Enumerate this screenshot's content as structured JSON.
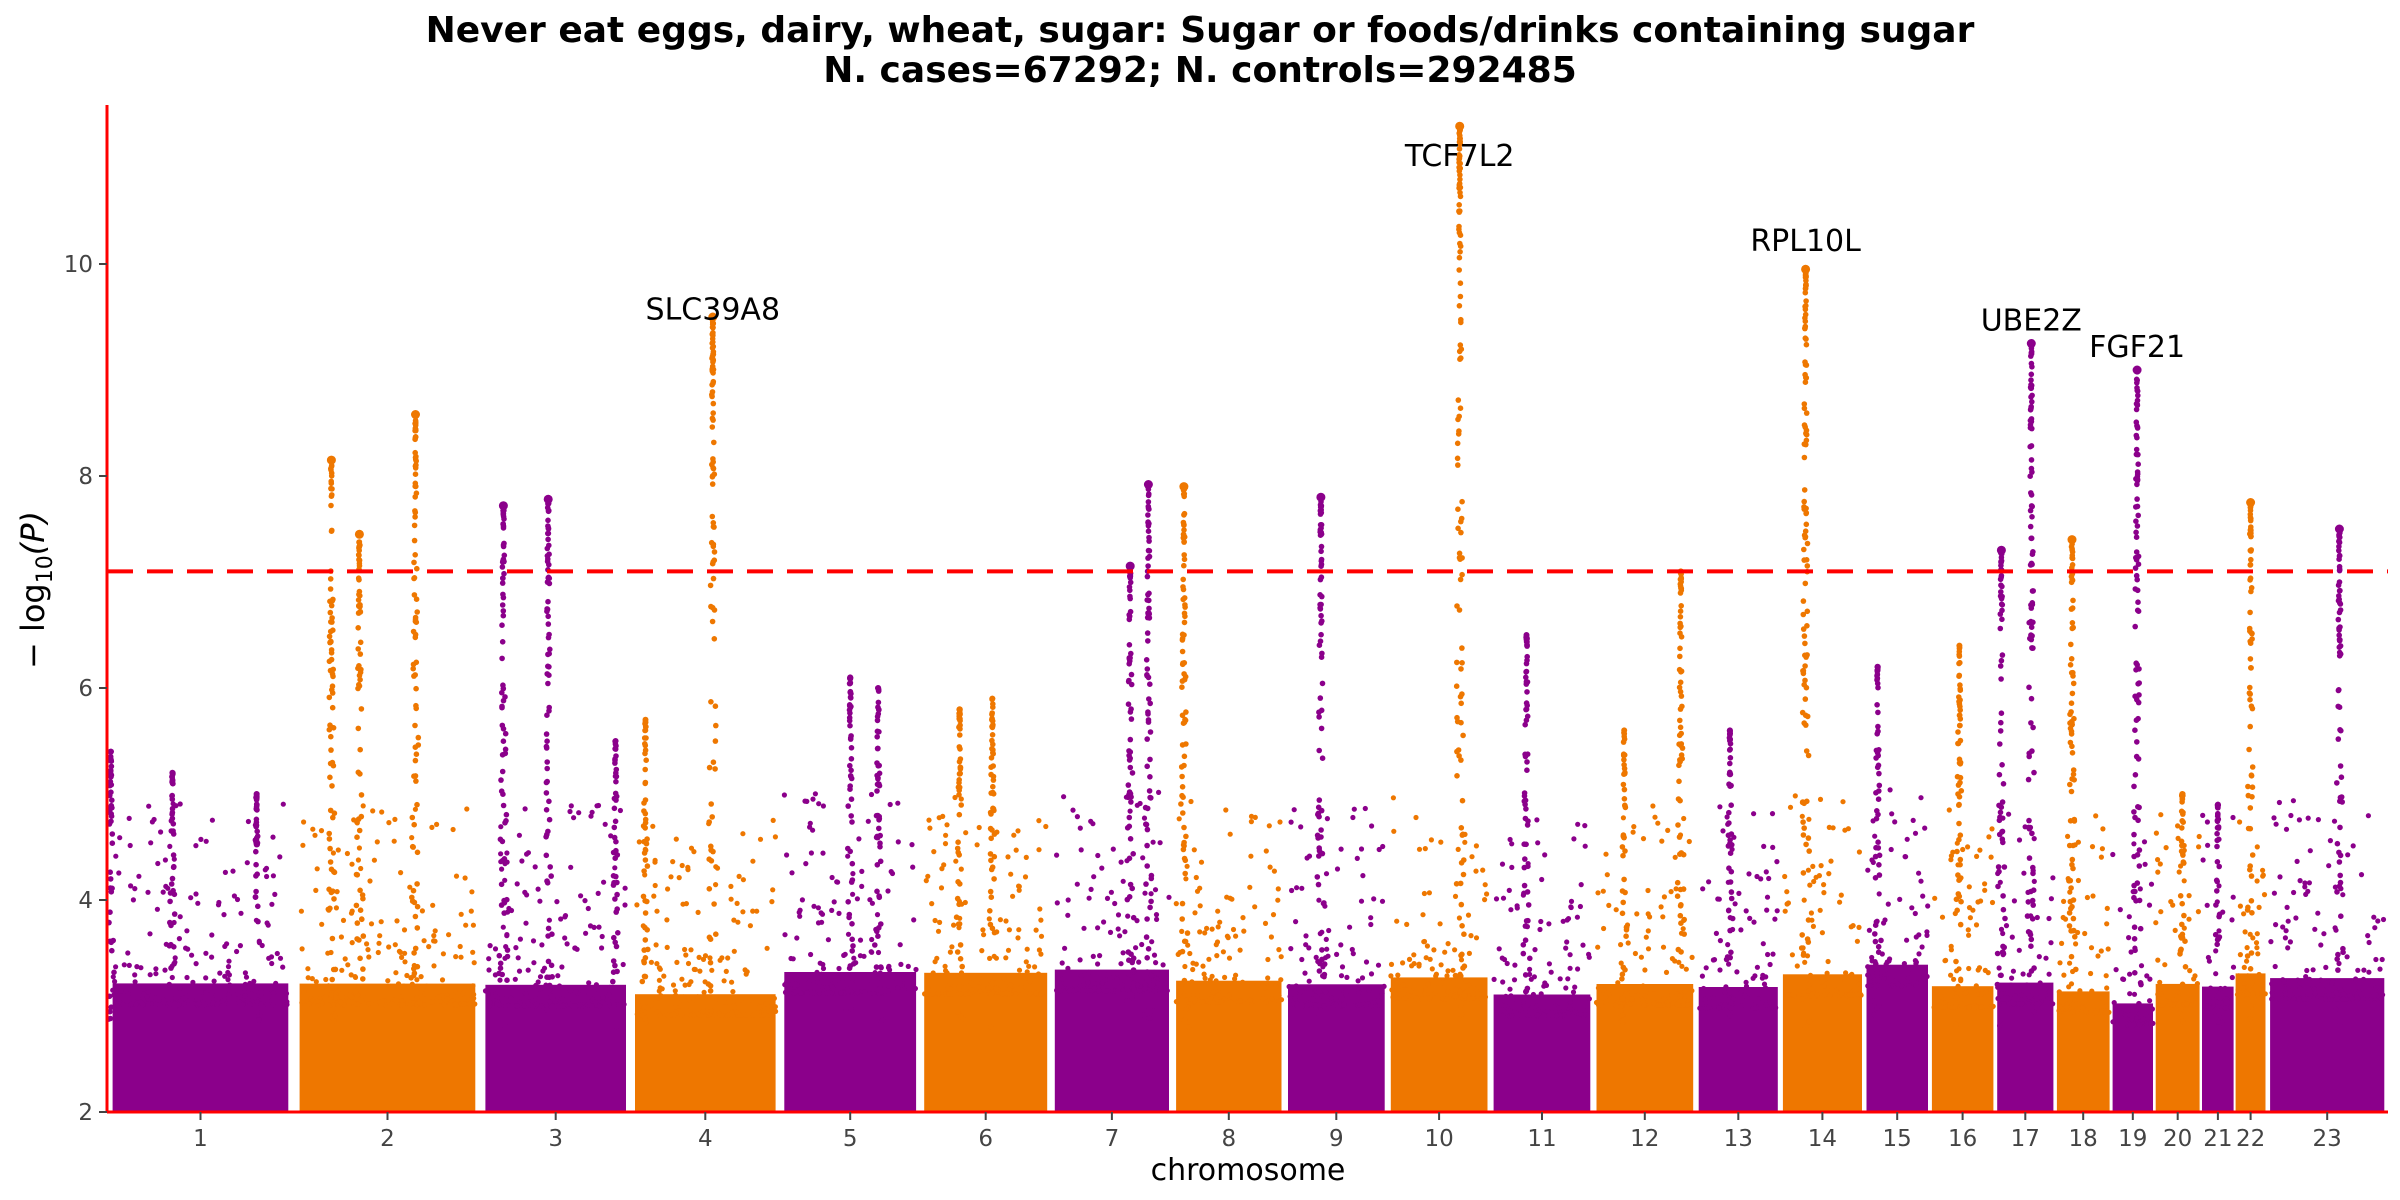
{
  "chart_data": {
    "type": "scatter",
    "title": "Never eat eggs, dairy, wheat, sugar: Sugar or foods/drinks containing sugar",
    "subtitle": "N. cases=67292; N. controls=292485",
    "xlabel": "chromosome",
    "ylabel_main": "− log",
    "ylabel_sub": "10",
    "ylabel_tail": "(P)",
    "ylim": [
      2,
      11.5
    ],
    "yticks": [
      2,
      4,
      6,
      8,
      10
    ],
    "threshold": 7.1,
    "colors": {
      "odd": "#8B008B",
      "even": "#EE7700",
      "threshold": "#FF0000",
      "axis": "#FF0000"
    },
    "chromosomes": [
      {
        "label": "1",
        "start": 0.0,
        "end": 1.0,
        "peaks": [
          [
            0.02,
            5.4
          ],
          [
            0.35,
            5.2
          ],
          [
            0.8,
            5.0
          ]
        ]
      },
      {
        "label": "2",
        "start": 1.0,
        "end": 2.0,
        "peaks": [
          [
            0.2,
            8.15
          ],
          [
            0.35,
            7.45
          ],
          [
            0.65,
            8.58
          ]
        ]
      },
      {
        "label": "3",
        "start": 2.0,
        "end": 2.8,
        "peaks": [
          [
            0.15,
            7.72
          ],
          [
            0.45,
            7.78
          ],
          [
            0.9,
            5.5
          ]
        ]
      },
      {
        "label": "4",
        "start": 2.8,
        "end": 3.6,
        "peaks": [
          [
            0.55,
            9.5
          ],
          [
            0.1,
            5.7
          ]
        ]
      },
      {
        "label": "5",
        "start": 3.6,
        "end": 4.35,
        "peaks": [
          [
            0.5,
            6.1
          ],
          [
            0.7,
            6.0
          ]
        ]
      },
      {
        "label": "6",
        "start": 4.35,
        "end": 5.05,
        "peaks": [
          [
            0.3,
            5.8
          ],
          [
            0.55,
            5.9
          ]
        ]
      },
      {
        "label": "7",
        "start": 5.05,
        "end": 5.7,
        "peaks": [
          [
            0.65,
            7.15
          ],
          [
            0.8,
            7.92
          ]
        ]
      },
      {
        "label": "8",
        "start": 5.7,
        "end": 6.3,
        "peaks": [
          [
            0.1,
            7.9
          ]
        ]
      },
      {
        "label": "9",
        "start": 6.3,
        "end": 6.85,
        "peaks": [
          [
            0.35,
            7.8
          ]
        ]
      },
      {
        "label": "10",
        "start": 6.85,
        "end": 7.4,
        "peaks": [
          [
            0.7,
            11.3
          ]
        ]
      },
      {
        "label": "11",
        "start": 7.4,
        "end": 7.95,
        "peaks": [
          [
            0.35,
            6.5
          ]
        ]
      },
      {
        "label": "12",
        "start": 7.95,
        "end": 8.5,
        "peaks": [
          [
            0.85,
            7.1
          ],
          [
            0.3,
            5.6
          ]
        ]
      },
      {
        "label": "13",
        "start": 8.5,
        "end": 8.95,
        "peaks": [
          [
            0.4,
            5.6
          ]
        ]
      },
      {
        "label": "14",
        "start": 8.95,
        "end": 9.4,
        "peaks": [
          [
            0.3,
            9.95
          ]
        ]
      },
      {
        "label": "15",
        "start": 9.4,
        "end": 9.75,
        "peaks": [
          [
            0.2,
            6.2
          ]
        ]
      },
      {
        "label": "16",
        "start": 9.75,
        "end": 10.1,
        "peaks": [
          [
            0.45,
            6.4
          ]
        ]
      },
      {
        "label": "17",
        "start": 10.1,
        "end": 10.42,
        "peaks": [
          [
            0.6,
            9.25
          ],
          [
            0.1,
            7.3
          ]
        ]
      },
      {
        "label": "18",
        "start": 10.42,
        "end": 10.72,
        "peaks": [
          [
            0.3,
            7.4
          ]
        ]
      },
      {
        "label": "19",
        "start": 10.72,
        "end": 10.95,
        "peaks": [
          [
            0.6,
            9.0
          ]
        ]
      },
      {
        "label": "20",
        "start": 10.95,
        "end": 11.2,
        "peaks": [
          [
            0.6,
            5.0
          ]
        ]
      },
      {
        "label": "21",
        "start": 11.2,
        "end": 11.38,
        "peaks": [
          [
            0.5,
            4.9
          ]
        ]
      },
      {
        "label": "22",
        "start": 11.38,
        "end": 11.55,
        "peaks": [
          [
            0.5,
            7.75
          ]
        ]
      },
      {
        "label": "23",
        "start": 11.55,
        "end": 12.2,
        "peaks": [
          [
            0.6,
            7.5
          ]
        ]
      }
    ],
    "annotations": [
      {
        "label": "SLC39A8",
        "chrom": "4",
        "pos": 0.55,
        "y": 9.55
      },
      {
        "label": "TCF7L2",
        "chrom": "10",
        "pos": 0.7,
        "y": 11.0
      },
      {
        "label": "RPL10L",
        "chrom": "14",
        "pos": 0.3,
        "y": 10.2
      },
      {
        "label": "UBE2Z",
        "chrom": "17",
        "pos": 0.6,
        "y": 9.45
      },
      {
        "label": "FGF21",
        "chrom": "19",
        "pos": 0.6,
        "y": 9.2
      }
    ]
  }
}
